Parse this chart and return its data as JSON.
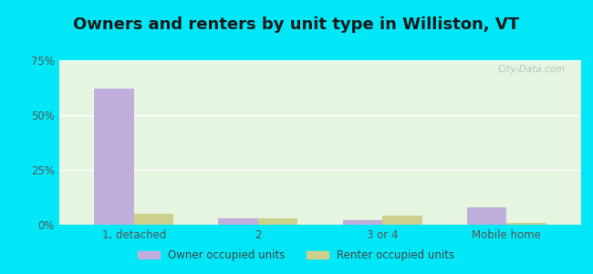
{
  "title": "Owners and renters by unit type in Williston, VT",
  "categories": [
    "1, detached",
    "2",
    "3 or 4",
    "Mobile home"
  ],
  "owner_values": [
    62,
    3,
    2,
    8
  ],
  "renter_values": [
    5,
    3,
    4,
    1
  ],
  "owner_color": "#c0aedd",
  "renter_color": "#cdd08a",
  "ylim": [
    0,
    75
  ],
  "yticks": [
    0,
    25,
    50,
    75
  ],
  "yticklabels": [
    "0%",
    "25%",
    "50%",
    "75%"
  ],
  "title_fontsize": 13,
  "legend_labels": [
    "Owner occupied units",
    "Renter occupied units"
  ],
  "background_outer": "#00e8f8",
  "background_plot_color": "#e6f5e0",
  "watermark": "City-Data.com"
}
